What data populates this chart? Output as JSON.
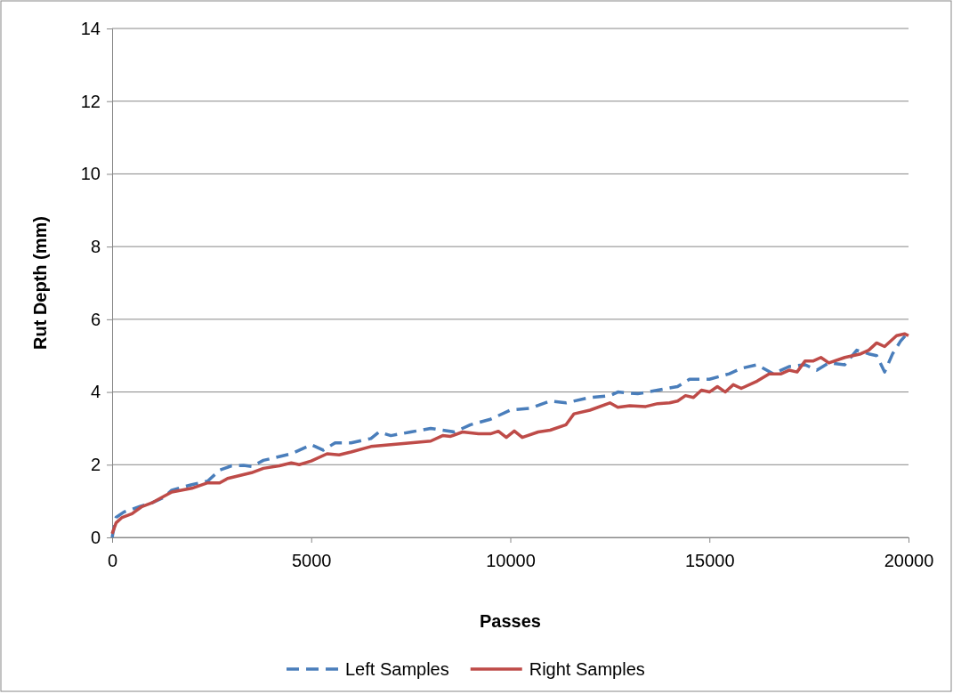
{
  "chart_data": {
    "type": "line",
    "xlabel": "Passes",
    "ylabel": "Rut Depth (mm)",
    "xlim": [
      0,
      20000
    ],
    "xticks": [
      0,
      5000,
      10000,
      15000,
      20000
    ],
    "ylim": [
      0,
      14
    ],
    "yticks": [
      0,
      2,
      4,
      6,
      8,
      10,
      12,
      14
    ],
    "grid": "y",
    "legend": "bottom",
    "marker": "none",
    "series": [
      {
        "name": "Left Samples",
        "color": "#4a7ebb",
        "line_style": "dashed",
        "x": [
          0,
          100,
          300,
          700,
          1000,
          1300,
          1500,
          2000,
          2400,
          2700,
          3000,
          3300,
          3500,
          3800,
          4500,
          5000,
          5300,
          5600,
          6000,
          6500,
          6700,
          7000,
          7500,
          8000,
          8300,
          8600,
          9000,
          9500,
          10000,
          10500,
          11000,
          11400,
          12000,
          12500,
          12700,
          13200,
          13700,
          14200,
          14500,
          15000,
          15500,
          15800,
          16200,
          16600,
          17000,
          17400,
          17700,
          18000,
          18400,
          18700,
          19000,
          19200,
          19400,
          19600,
          19800,
          20000
        ],
        "values": [
          0,
          0.55,
          0.7,
          0.85,
          0.95,
          1.1,
          1.3,
          1.45,
          1.55,
          1.85,
          1.97,
          1.98,
          1.95,
          2.12,
          2.3,
          2.55,
          2.4,
          2.6,
          2.6,
          2.72,
          2.9,
          2.8,
          2.9,
          3,
          2.95,
          2.9,
          3.1,
          3.25,
          3.5,
          3.55,
          3.75,
          3.7,
          3.85,
          3.9,
          4,
          3.95,
          4.05,
          4.15,
          4.35,
          4.35,
          4.5,
          4.65,
          4.75,
          4.5,
          4.7,
          4.75,
          4.6,
          4.8,
          4.75,
          5.15,
          5.05,
          5,
          4.55,
          5.05,
          5.4,
          5.65
        ]
      },
      {
        "name": "Right Samples",
        "color": "#be4b48",
        "line_style": "solid",
        "x": [
          0,
          100,
          250,
          500,
          750,
          1000,
          1250,
          1500,
          2000,
          2400,
          2700,
          2900,
          3500,
          3800,
          4200,
          4500,
          4700,
          5000,
          5400,
          5700,
          6000,
          6500,
          7000,
          7500,
          8000,
          8300,
          8500,
          8800,
          9200,
          9500,
          9700,
          9900,
          10100,
          10300,
          10700,
          11000,
          11400,
          11600,
          12000,
          12500,
          12700,
          13000,
          13400,
          13700,
          14000,
          14200,
          14400,
          14600,
          14800,
          15000,
          15200,
          15400,
          15600,
          15800,
          16200,
          16500,
          16800,
          17000,
          17200,
          17400,
          17600,
          17800,
          18000,
          18400,
          18800,
          19000,
          19200,
          19400,
          19700,
          19900,
          20000
        ],
        "values": [
          0.1,
          0.4,
          0.55,
          0.65,
          0.85,
          0.95,
          1.1,
          1.25,
          1.35,
          1.5,
          1.5,
          1.62,
          1.78,
          1.9,
          1.97,
          2.05,
          2,
          2.1,
          2.3,
          2.27,
          2.35,
          2.5,
          2.55,
          2.6,
          2.65,
          2.8,
          2.78,
          2.9,
          2.85,
          2.85,
          2.92,
          2.75,
          2.93,
          2.75,
          2.9,
          2.95,
          3.1,
          3.4,
          3.5,
          3.7,
          3.58,
          3.62,
          3.6,
          3.68,
          3.7,
          3.75,
          3.9,
          3.85,
          4.05,
          4,
          4.15,
          4,
          4.2,
          4.1,
          4.3,
          4.5,
          4.5,
          4.6,
          4.55,
          4.85,
          4.85,
          4.95,
          4.8,
          4.95,
          5.05,
          5.15,
          5.35,
          5.25,
          5.55,
          5.6,
          5.55
        ]
      }
    ]
  }
}
